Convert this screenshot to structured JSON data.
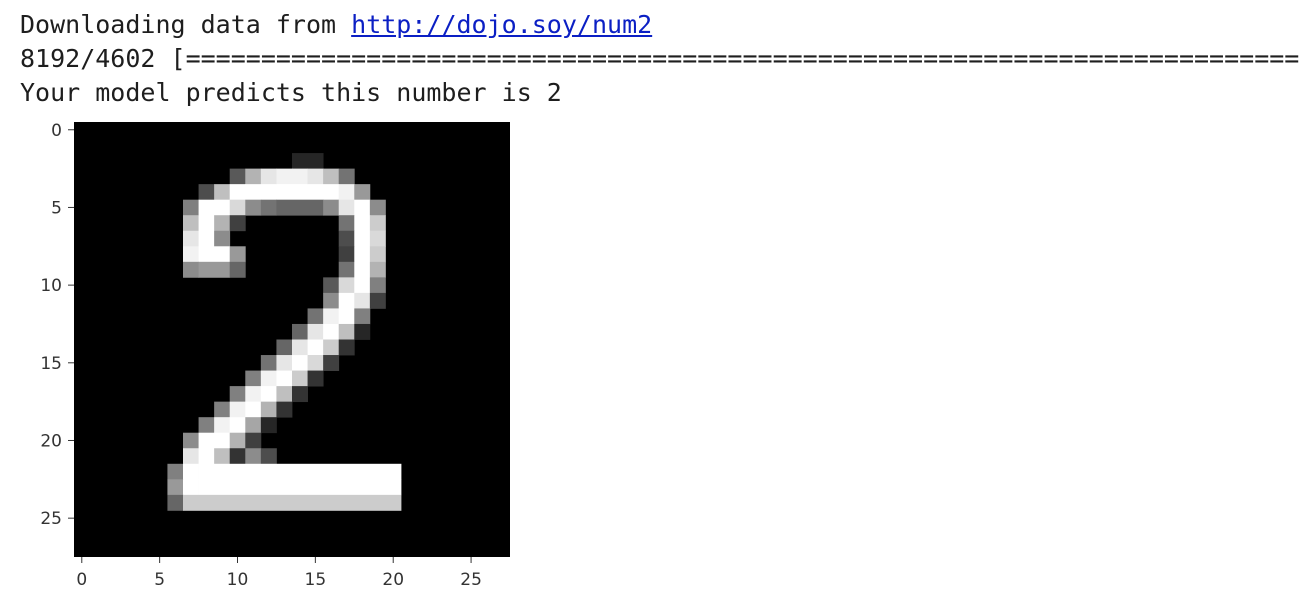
{
  "output": {
    "download_prefix": "Downloading data from ",
    "download_url": "http://dojo.soy/num2",
    "progress_text": "8192/4602 [==========================================================================",
    "prediction_text": "Your model predicts this number is 2"
  },
  "chart_data": {
    "type": "heatmap",
    "title": "",
    "xlabel": "",
    "ylabel": "",
    "colormap": "gray",
    "xlim": [
      -0.5,
      27.5
    ],
    "ylim": [
      27.5,
      -0.5
    ],
    "x_ticks": [
      0,
      5,
      10,
      15,
      20,
      25
    ],
    "y_ticks": [
      0,
      5,
      10,
      15,
      20,
      25
    ],
    "x_tick_labels": [
      "0",
      "5",
      "10",
      "15",
      "20",
      "25"
    ],
    "y_tick_labels": [
      "0",
      "5",
      "10",
      "15",
      "20",
      "25"
    ],
    "rows": 28,
    "cols": 28,
    "pixels": [
      [
        2,
        14,
        15,
        0.15
      ],
      [
        3,
        10,
        10,
        0.35
      ],
      [
        3,
        11,
        11,
        0.7
      ],
      [
        3,
        12,
        12,
        0.9
      ],
      [
        3,
        13,
        13,
        0.95
      ],
      [
        3,
        14,
        14,
        0.95
      ],
      [
        3,
        15,
        15,
        0.9
      ],
      [
        3,
        16,
        16,
        0.75
      ],
      [
        3,
        17,
        17,
        0.45
      ],
      [
        4,
        8,
        8,
        0.3
      ],
      [
        4,
        9,
        9,
        0.75
      ],
      [
        4,
        10,
        10,
        1.0
      ],
      [
        4,
        11,
        16,
        1.0
      ],
      [
        4,
        17,
        17,
        0.95
      ],
      [
        4,
        18,
        18,
        0.6
      ],
      [
        5,
        7,
        7,
        0.5
      ],
      [
        5,
        8,
        9,
        1.0
      ],
      [
        5,
        10,
        10,
        0.85
      ],
      [
        5,
        11,
        11,
        0.55
      ],
      [
        5,
        12,
        12,
        0.45
      ],
      [
        5,
        13,
        15,
        0.4
      ],
      [
        5,
        16,
        16,
        0.55
      ],
      [
        5,
        17,
        17,
        0.9
      ],
      [
        5,
        18,
        18,
        1.0
      ],
      [
        5,
        19,
        19,
        0.55
      ],
      [
        6,
        7,
        7,
        0.75
      ],
      [
        6,
        8,
        8,
        1.0
      ],
      [
        6,
        9,
        9,
        0.7
      ],
      [
        6,
        10,
        10,
        0.25
      ],
      [
        6,
        17,
        17,
        0.45
      ],
      [
        6,
        18,
        18,
        1.0
      ],
      [
        6,
        19,
        19,
        0.8
      ],
      [
        7,
        7,
        7,
        0.9
      ],
      [
        7,
        8,
        8,
        1.0
      ],
      [
        7,
        9,
        9,
        0.55
      ],
      [
        7,
        17,
        17,
        0.3
      ],
      [
        7,
        18,
        18,
        1.0
      ],
      [
        7,
        19,
        19,
        0.85
      ],
      [
        8,
        7,
        7,
        0.95
      ],
      [
        8,
        8,
        9,
        1.0
      ],
      [
        8,
        10,
        10,
        0.6
      ],
      [
        8,
        17,
        17,
        0.25
      ],
      [
        8,
        18,
        18,
        1.0
      ],
      [
        8,
        19,
        19,
        0.8
      ],
      [
        9,
        7,
        7,
        0.55
      ],
      [
        9,
        8,
        9,
        0.6
      ],
      [
        9,
        10,
        10,
        0.4
      ],
      [
        9,
        17,
        17,
        0.45
      ],
      [
        9,
        18,
        18,
        1.0
      ],
      [
        9,
        19,
        19,
        0.7
      ],
      [
        10,
        16,
        16,
        0.35
      ],
      [
        10,
        17,
        17,
        0.85
      ],
      [
        10,
        18,
        18,
        1.0
      ],
      [
        10,
        19,
        19,
        0.5
      ],
      [
        11,
        16,
        16,
        0.55
      ],
      [
        11,
        17,
        17,
        1.0
      ],
      [
        11,
        18,
        18,
        0.9
      ],
      [
        11,
        19,
        19,
        0.25
      ],
      [
        12,
        15,
        15,
        0.45
      ],
      [
        12,
        16,
        16,
        0.95
      ],
      [
        12,
        17,
        17,
        1.0
      ],
      [
        12,
        18,
        18,
        0.5
      ],
      [
        13,
        14,
        14,
        0.4
      ],
      [
        13,
        15,
        15,
        0.9
      ],
      [
        13,
        16,
        16,
        1.0
      ],
      [
        13,
        17,
        17,
        0.75
      ],
      [
        13,
        18,
        18,
        0.15
      ],
      [
        14,
        13,
        13,
        0.4
      ],
      [
        14,
        14,
        14,
        0.9
      ],
      [
        14,
        15,
        15,
        1.0
      ],
      [
        14,
        16,
        16,
        0.8
      ],
      [
        14,
        17,
        17,
        0.2
      ],
      [
        15,
        12,
        12,
        0.45
      ],
      [
        15,
        13,
        13,
        0.9
      ],
      [
        15,
        14,
        14,
        1.0
      ],
      [
        15,
        15,
        15,
        0.85
      ],
      [
        15,
        16,
        16,
        0.25
      ],
      [
        16,
        11,
        11,
        0.5
      ],
      [
        16,
        12,
        12,
        0.95
      ],
      [
        16,
        13,
        13,
        1.0
      ],
      [
        16,
        14,
        14,
        0.8
      ],
      [
        16,
        15,
        15,
        0.2
      ],
      [
        17,
        10,
        10,
        0.5
      ],
      [
        17,
        11,
        11,
        0.95
      ],
      [
        17,
        12,
        12,
        1.0
      ],
      [
        17,
        13,
        13,
        0.75
      ],
      [
        17,
        14,
        14,
        0.2
      ],
      [
        18,
        9,
        9,
        0.5
      ],
      [
        18,
        10,
        10,
        0.95
      ],
      [
        18,
        11,
        11,
        1.0
      ],
      [
        18,
        12,
        12,
        0.7
      ],
      [
        18,
        13,
        13,
        0.2
      ],
      [
        19,
        8,
        8,
        0.5
      ],
      [
        19,
        9,
        9,
        0.95
      ],
      [
        19,
        10,
        10,
        1.0
      ],
      [
        19,
        11,
        11,
        0.65
      ],
      [
        19,
        12,
        12,
        0.15
      ],
      [
        20,
        7,
        7,
        0.55
      ],
      [
        20,
        8,
        8,
        1.0
      ],
      [
        20,
        9,
        9,
        1.0
      ],
      [
        20,
        10,
        10,
        0.7
      ],
      [
        20,
        11,
        11,
        0.25
      ],
      [
        21,
        7,
        7,
        0.9
      ],
      [
        21,
        8,
        8,
        1.0
      ],
      [
        21,
        9,
        9,
        0.75
      ],
      [
        21,
        10,
        10,
        0.2
      ],
      [
        21,
        11,
        11,
        0.55
      ],
      [
        21,
        12,
        12,
        0.3
      ],
      [
        22,
        6,
        6,
        0.5
      ],
      [
        22,
        7,
        7,
        1.0
      ],
      [
        22,
        8,
        20,
        1.0
      ],
      [
        23,
        6,
        6,
        0.6
      ],
      [
        23,
        7,
        7,
        1.0
      ],
      [
        23,
        8,
        20,
        1.0
      ],
      [
        24,
        6,
        6,
        0.4
      ],
      [
        24,
        7,
        20,
        0.8
      ]
    ]
  },
  "colors": {
    "background": "#ffffff",
    "text": "#1e1e1e",
    "link": "#0b1fc4",
    "image_background": "#000000",
    "tick_text": "#333333"
  }
}
